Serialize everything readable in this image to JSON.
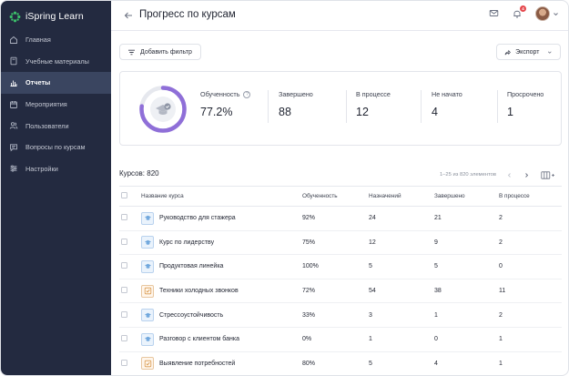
{
  "brand": {
    "name": "iSpring Learn"
  },
  "sidebar": {
    "items": [
      {
        "label": "Главная",
        "icon": "home-icon",
        "active": false
      },
      {
        "label": "Учебные материалы",
        "icon": "book-icon",
        "active": false
      },
      {
        "label": "Отчеты",
        "icon": "bar-chart-icon",
        "active": true
      },
      {
        "label": "Мероприятия",
        "icon": "calendar-icon",
        "active": false
      },
      {
        "label": "Пользователи",
        "icon": "users-icon",
        "active": false
      },
      {
        "label": "Вопросы по курсам",
        "icon": "chat-icon",
        "active": false
      },
      {
        "label": "Настройки",
        "icon": "settings-icon",
        "active": false
      }
    ]
  },
  "header": {
    "title": "Прогресс по курсам",
    "notifications_count": "4"
  },
  "toolbar": {
    "add_filter": "Добавить фильтр",
    "export": "Экспорт"
  },
  "stats": {
    "progress_fraction": 0.772,
    "training": {
      "label": "Обученность",
      "value": "77.2%"
    },
    "completed": {
      "label": "Завершено",
      "value": "88"
    },
    "in_progress": {
      "label": "В процессе",
      "value": "12"
    },
    "not_started": {
      "label": "Не начато",
      "value": "4"
    },
    "overdue": {
      "label": "Просрочено",
      "value": "1"
    }
  },
  "table": {
    "count_label": "Курсов: 820",
    "pagination": "1–25 из 820 элементов",
    "columns": [
      "Название курса",
      "Обученность",
      "Назначений",
      "Завершено",
      "В процессе"
    ],
    "rows": [
      {
        "name": "Руководство для стажера",
        "type": "course",
        "training": "92%",
        "assigned": "24",
        "completed": "21",
        "in_progress": "2"
      },
      {
        "name": "Курс по лидерству",
        "type": "course",
        "training": "75%",
        "assigned": "12",
        "completed": "9",
        "in_progress": "2"
      },
      {
        "name": "Продуктовая линейка",
        "type": "course",
        "training": "100%",
        "assigned": "5",
        "completed": "5",
        "in_progress": "0"
      },
      {
        "name": "Техники холодных звонков",
        "type": "task",
        "training": "72%",
        "assigned": "54",
        "completed": "38",
        "in_progress": "11"
      },
      {
        "name": "Стрессоустойчивость",
        "type": "course",
        "training": "33%",
        "assigned": "3",
        "completed": "1",
        "in_progress": "2"
      },
      {
        "name": "Разговор с клиентом банка",
        "type": "course",
        "training": "0%",
        "assigned": "1",
        "completed": "0",
        "in_progress": "1"
      },
      {
        "name": "Выявление потребностей",
        "type": "task",
        "training": "80%",
        "assigned": "5",
        "completed": "4",
        "in_progress": "1"
      }
    ]
  },
  "colors": {
    "sidebar_bg": "#232a40",
    "sidebar_active": "#3a4560",
    "ring_progress": "#8f6fd8",
    "ring_track": "#e6e8ee",
    "badge": "#e5484d",
    "logo_green": "#3cbf6a"
  }
}
